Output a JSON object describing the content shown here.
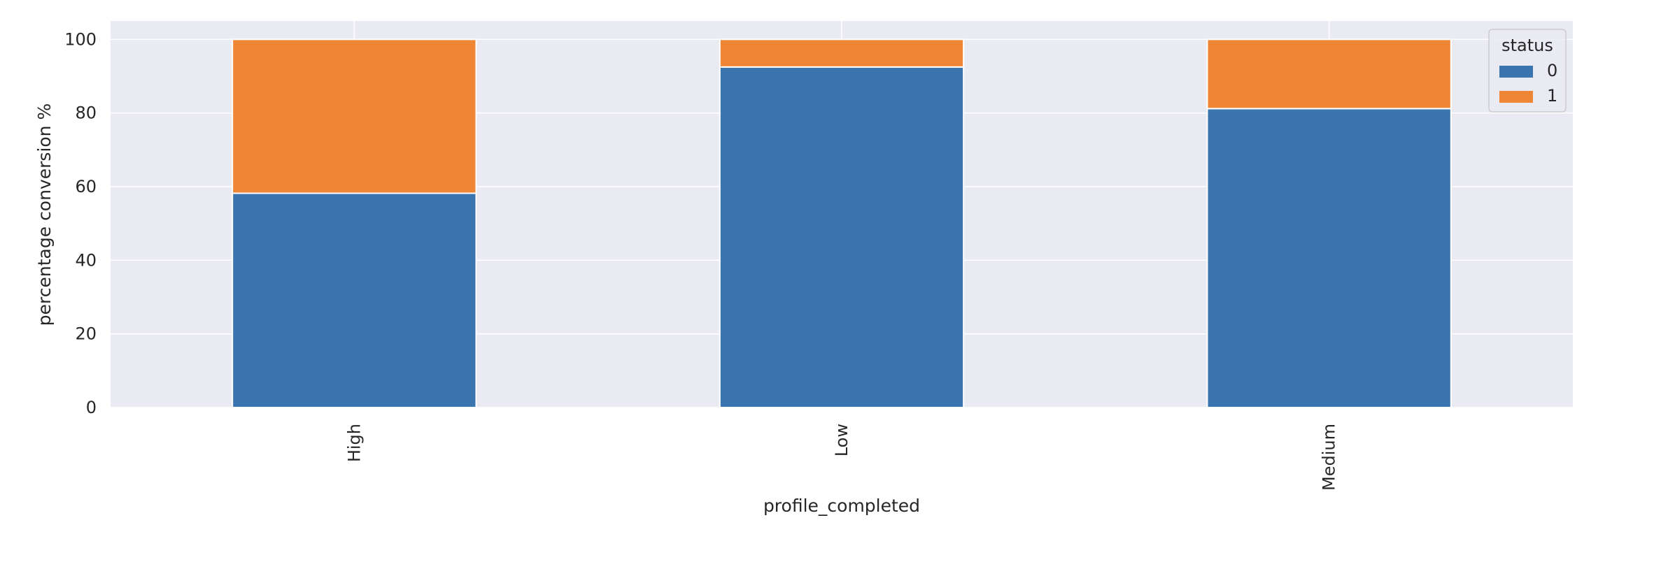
{
  "chart_data": {
    "type": "bar",
    "stacked": true,
    "categories": [
      "High",
      "Low",
      "Medium"
    ],
    "series": [
      {
        "name": "0",
        "values": [
          58.2,
          92.5,
          81.2
        ],
        "color": "#3a75af"
      },
      {
        "name": "1",
        "values": [
          41.8,
          7.5,
          18.8
        ],
        "color": "#ef8636"
      }
    ],
    "xlabel": "profile_completed",
    "ylabel": "percentage conversion %",
    "ylim": [
      0,
      105
    ],
    "yticks": [
      0,
      20,
      40,
      60,
      80,
      100
    ],
    "grid": true,
    "background": "#eaeaf2",
    "legend": {
      "title": "status",
      "placement": "top-right"
    }
  }
}
